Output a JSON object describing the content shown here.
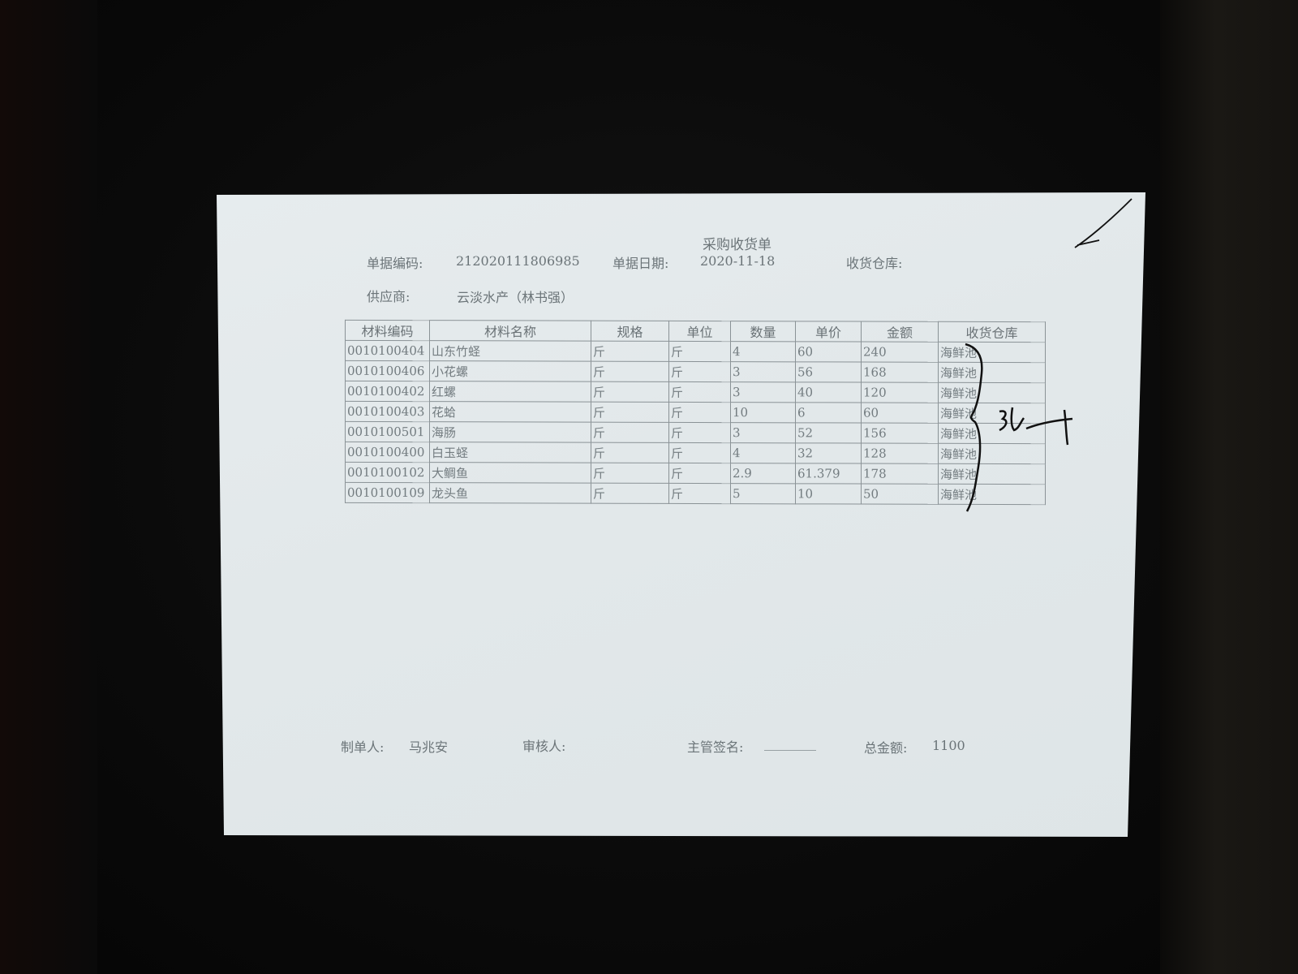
{
  "document": {
    "title": "采购收货单",
    "fields": {
      "doc_no_label": "单据编码:",
      "doc_no": "212020111806985",
      "doc_date_label": "单据日期:",
      "doc_date": "2020-11-18",
      "warehouse_label": "收货仓库:",
      "supplier_label": "供应商:",
      "supplier": "云淡水产（林书强）"
    },
    "table": {
      "headers": [
        "材料编码",
        "材料名称",
        "规格",
        "单位",
        "数量",
        "单价",
        "金额",
        "收货仓库"
      ],
      "rows": [
        [
          "0010100404",
          "山东竹蛏",
          "斤",
          "斤",
          "4",
          "60",
          "240",
          "海鲜池"
        ],
        [
          "0010100406",
          "小花螺",
          "斤",
          "斤",
          "3",
          "56",
          "168",
          "海鲜池"
        ],
        [
          "0010100402",
          "红螺",
          "斤",
          "斤",
          "3",
          "40",
          "120",
          "海鲜池"
        ],
        [
          "0010100403",
          "花蛤",
          "斤",
          "斤",
          "10",
          "6",
          "60",
          "海鲜池"
        ],
        [
          "0010100501",
          "海肠",
          "斤",
          "斤",
          "3",
          "52",
          "156",
          "海鲜池"
        ],
        [
          "0010100400",
          "白玉蛏",
          "斤",
          "斤",
          "4",
          "32",
          "128",
          "海鲜池"
        ],
        [
          "0010100102",
          "大鲷鱼",
          "斤",
          "斤",
          "2.9",
          "61.379",
          "178",
          "海鲜池"
        ],
        [
          "0010100109",
          "龙头鱼",
          "斤",
          "斤",
          "5",
          "10",
          "50",
          "海鲜池"
        ]
      ]
    },
    "footer": {
      "maker_label": "制单人:",
      "maker": "马兆安",
      "reviewer_label": "审核人:",
      "supervisor_label": "主管签名:",
      "supervisor_blank": "________",
      "total_label": "总金额:",
      "total": "1100"
    }
  }
}
